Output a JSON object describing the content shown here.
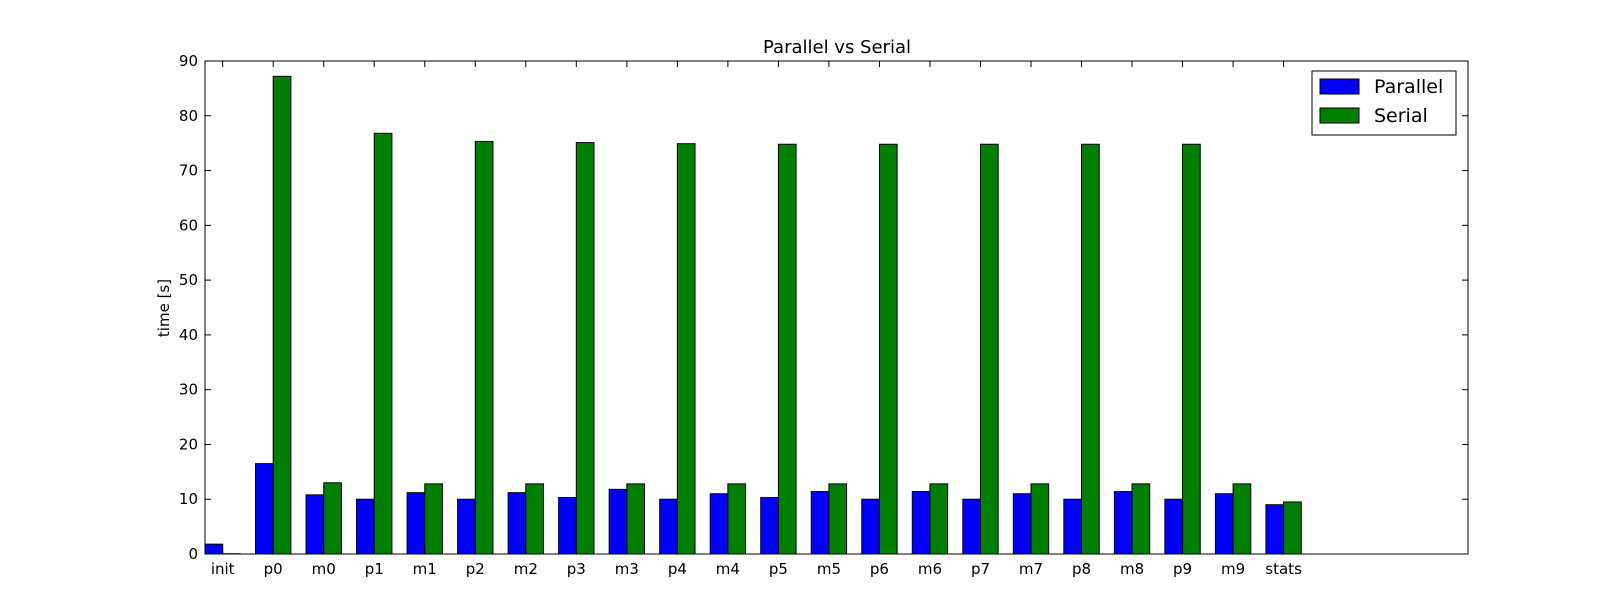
{
  "chart_data": {
    "type": "bar",
    "title": "Parallel vs Serial",
    "xlabel": "",
    "ylabel": "time [s]",
    "ylim": [
      0,
      90
    ],
    "yticks": [
      0,
      10,
      20,
      30,
      40,
      50,
      60,
      70,
      80,
      90
    ],
    "categories": [
      "init",
      "p0",
      "m0",
      "p1",
      "m1",
      "p2",
      "m2",
      "p3",
      "m3",
      "p4",
      "m4",
      "p5",
      "m5",
      "p6",
      "m6",
      "p7",
      "m7",
      "p8",
      "m8",
      "p9",
      "m9",
      "stats"
    ],
    "series": [
      {
        "name": "Parallel",
        "color": "#0000ff",
        "values": [
          1.8,
          16.5,
          10.8,
          10.0,
          11.2,
          10.0,
          11.2,
          10.3,
          11.8,
          10.0,
          11.0,
          10.3,
          11.4,
          10.0,
          11.4,
          10.0,
          11.0,
          10.0,
          11.4,
          10.0,
          11.0,
          9.0
        ]
      },
      {
        "name": "Serial",
        "color": "#008000",
        "values": [
          0.05,
          87.2,
          13.0,
          76.8,
          12.8,
          75.3,
          12.8,
          75.1,
          12.8,
          74.9,
          12.8,
          74.8,
          12.8,
          74.8,
          12.8,
          74.8,
          12.8,
          74.8,
          12.8,
          74.8,
          12.8,
          9.5
        ]
      }
    ],
    "x_slots": 25,
    "grid": false,
    "legend": "top-right"
  }
}
